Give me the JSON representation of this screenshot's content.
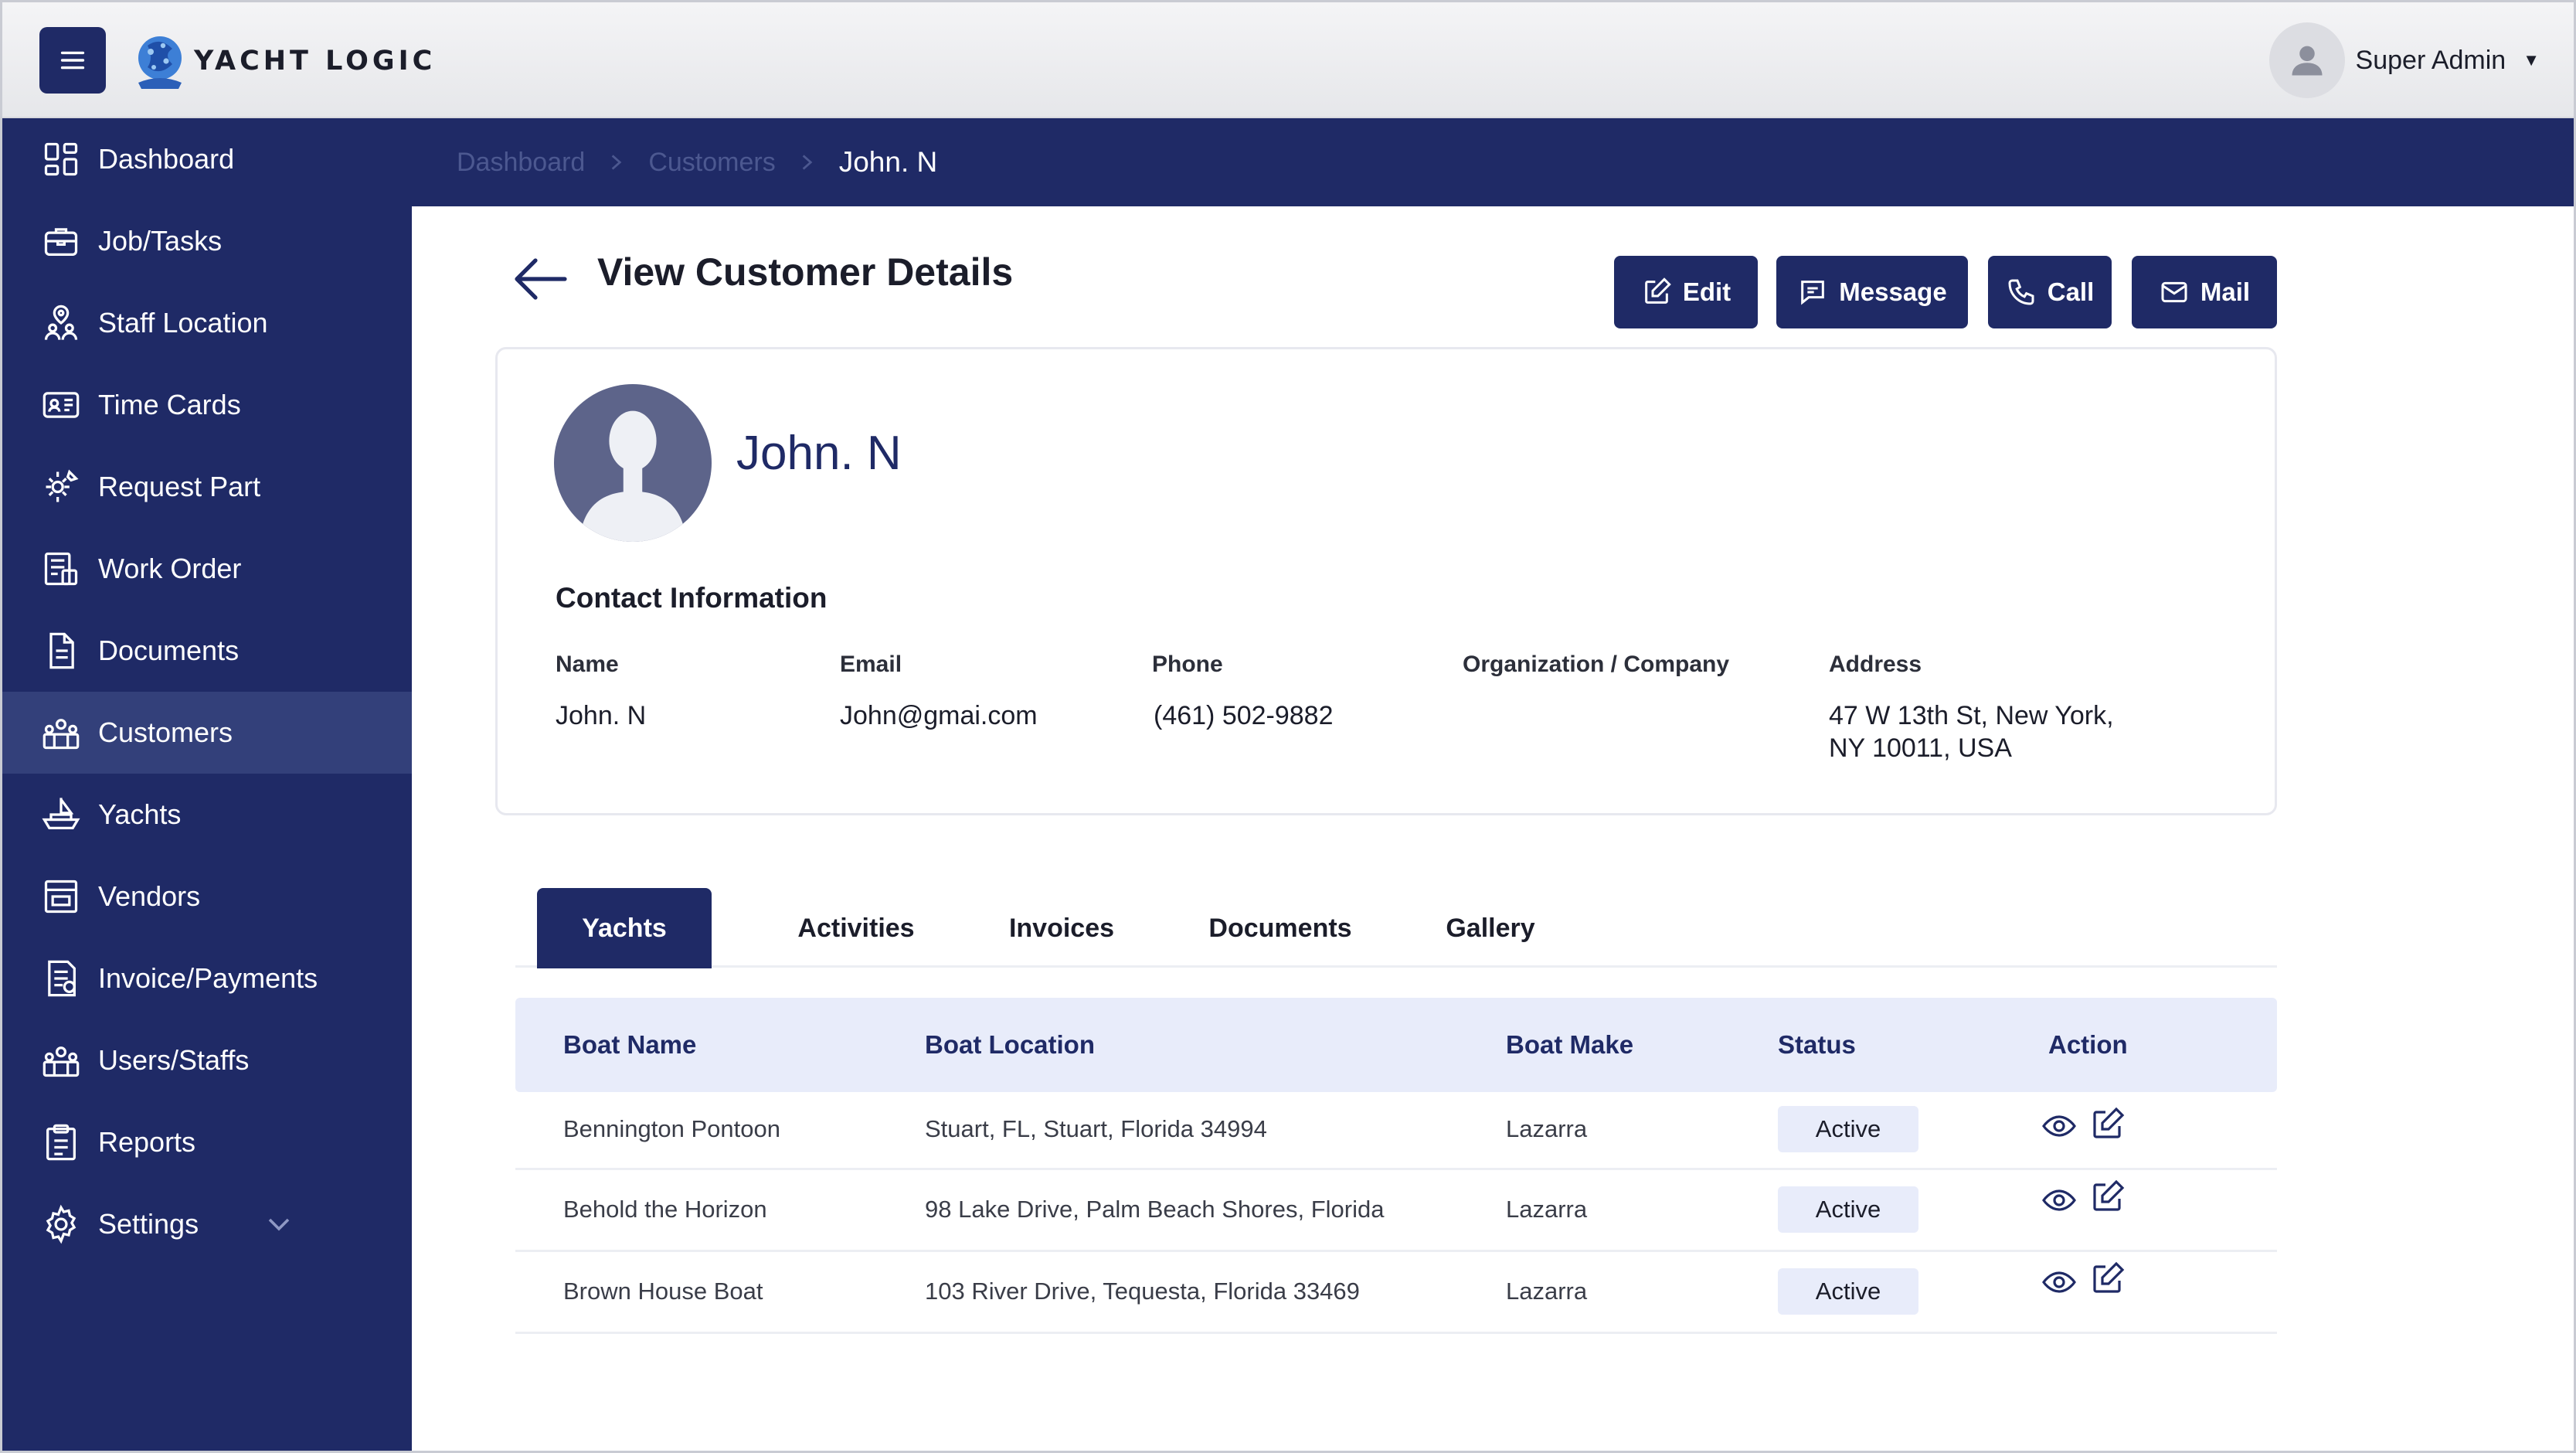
{
  "app": {
    "logo_text": "YACHT LOGIC"
  },
  "user": {
    "name": "Super Admin"
  },
  "sidebar": {
    "items": [
      {
        "label": "Dashboard",
        "icon": "dashboard-icon"
      },
      {
        "label": "Job/Tasks",
        "icon": "briefcase-icon"
      },
      {
        "label": "Staff Location",
        "icon": "staff-location-icon"
      },
      {
        "label": "Time Cards",
        "icon": "time-card-icon"
      },
      {
        "label": "Request Part",
        "icon": "gear-wrench-icon"
      },
      {
        "label": "Work Order",
        "icon": "work-order-icon"
      },
      {
        "label": "Documents",
        "icon": "document-icon"
      },
      {
        "label": "Customers",
        "icon": "customers-icon",
        "active": true
      },
      {
        "label": "Yachts",
        "icon": "yacht-icon"
      },
      {
        "label": "Vendors",
        "icon": "vendor-icon"
      },
      {
        "label": "Invoice/Payments",
        "icon": "invoice-icon"
      },
      {
        "label": "Users/Staffs",
        "icon": "users-icon"
      },
      {
        "label": "Reports",
        "icon": "clipboard-icon"
      },
      {
        "label": "Settings",
        "icon": "settings-icon"
      }
    ]
  },
  "breadcrumb": [
    "Dashboard",
    "Customers",
    "John. N"
  ],
  "page": {
    "title": "View Customer Details",
    "actions": {
      "edit": "Edit",
      "message": "Message",
      "call": "Call",
      "mail": "Mail"
    }
  },
  "customer": {
    "name": "John. N",
    "section_title": "Contact Information",
    "fields": {
      "name_label": "Name",
      "name_value": "John. N",
      "email_label": "Email",
      "email_value": "John@gmai.com",
      "phone_label": "Phone",
      "phone_value": "(461) 502-9882",
      "org_label": "Organization / Company",
      "org_value": "",
      "address_label": "Address",
      "address_line1": "47 W 13th St, New York,",
      "address_line2": "NY 10011, USA"
    }
  },
  "tabs": [
    "Yachts",
    "Activities",
    "Invoices",
    "Documents",
    "Gallery"
  ],
  "active_tab": "Yachts",
  "table": {
    "headers": [
      "Boat Name",
      "Boat Location",
      "Boat Make",
      "Status",
      "Action"
    ],
    "rows": [
      {
        "name": "Bennington Pontoon",
        "location": "Stuart, FL, Stuart, Florida 34994",
        "make": "Lazarra",
        "status": "Active"
      },
      {
        "name": "Behold the Horizon",
        "location": "98 Lake Drive, Palm Beach Shores, Florida",
        "make": "Lazarra",
        "status": "Active"
      },
      {
        "name": "Brown House Boat",
        "location": "103 River Drive, Tequesta, Florida 33469",
        "make": "Lazarra",
        "status": "Active"
      }
    ]
  },
  "colors": {
    "primary": "#1f2a66",
    "sidebar_active": "#33407a",
    "table_header": "#e8ecfa"
  }
}
